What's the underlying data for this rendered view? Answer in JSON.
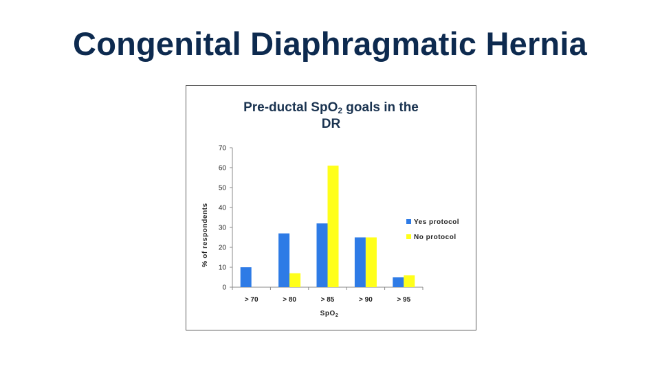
{
  "slide": {
    "title": "Congenital Diaphragmatic Hernia"
  },
  "chart_data": {
    "type": "bar",
    "title_main": "Pre-ductal SpO",
    "title_sub": "2",
    "title_rest": " goals in the",
    "title_line2": "DR",
    "xlabel_main": "SpO",
    "xlabel_sub": "2",
    "ylabel": "% of respondents",
    "categories": [
      "> 70",
      "> 80",
      "> 85",
      "> 90",
      "> 95"
    ],
    "series": [
      {
        "name": "Yes protocol",
        "color": "#2e7be6",
        "values": [
          10,
          27,
          32,
          25,
          5
        ]
      },
      {
        "name": "No protocol",
        "color": "#ffff1a",
        "values": [
          0,
          7,
          61,
          25,
          6
        ]
      }
    ],
    "ylim": [
      0,
      70
    ],
    "yticks": [
      0,
      10,
      20,
      30,
      40,
      50,
      60,
      70
    ],
    "grid": false,
    "legend_position": "right"
  }
}
